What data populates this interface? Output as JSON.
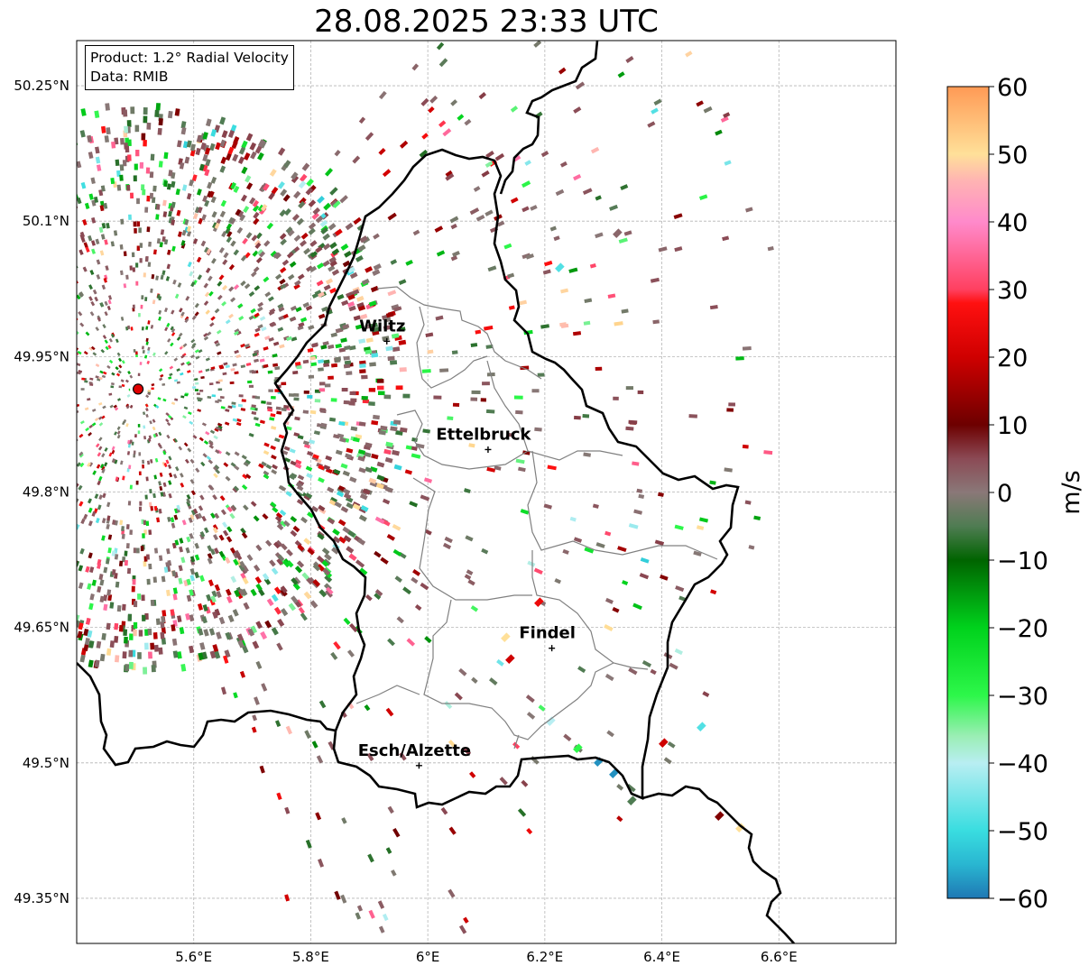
{
  "title": "28.08.2025 23:33 UTC",
  "info": {
    "product": "Product: 1.2° Radial Velocity",
    "data": "Data: RMIB"
  },
  "map": {
    "lon_range": [
      5.4,
      6.8
    ],
    "lat_range": [
      49.3,
      50.3
    ],
    "grid": true,
    "lat_ticks": [
      {
        "value": 50.25,
        "label": "50.25°N"
      },
      {
        "value": 50.1,
        "label": "50.1°N"
      },
      {
        "value": 49.95,
        "label": "49.95°N"
      },
      {
        "value": 49.8,
        "label": "49.8°N"
      },
      {
        "value": 49.65,
        "label": "49.65°N"
      },
      {
        "value": 49.5,
        "label": "49.5°N"
      },
      {
        "value": 49.35,
        "label": "49.35°N"
      }
    ],
    "lon_ticks": [
      {
        "value": 5.6,
        "label": "5.6°E"
      },
      {
        "value": 5.8,
        "label": "5.8°E"
      },
      {
        "value": 6.0,
        "label": "6°E"
      },
      {
        "value": 6.2,
        "label": "6.2°E"
      },
      {
        "value": 6.4,
        "label": "6.4°E"
      },
      {
        "value": 6.6,
        "label": "6.6°E"
      }
    ],
    "radar_site": {
      "lon": 5.505,
      "lat": 49.914
    },
    "cities": [
      {
        "name": "Wiltz",
        "lon": 5.93,
        "lat": 49.967
      },
      {
        "name": "Ettelbruck",
        "lon": 6.103,
        "lat": 49.847
      },
      {
        "name": "Findel",
        "lon": 6.212,
        "lat": 49.627
      },
      {
        "name": "Esch/Alzette",
        "lon": 5.985,
        "lat": 49.497
      }
    ]
  },
  "colorbar": {
    "label": "m/s",
    "range": [
      -60,
      60
    ],
    "ticks": [
      {
        "value": 60,
        "label": "60"
      },
      {
        "value": 50,
        "label": "50"
      },
      {
        "value": 40,
        "label": "40"
      },
      {
        "value": 30,
        "label": "30"
      },
      {
        "value": 20,
        "label": "20"
      },
      {
        "value": 10,
        "label": "10"
      },
      {
        "value": 0,
        "label": "0"
      },
      {
        "value": -10,
        "label": "−10"
      },
      {
        "value": -20,
        "label": "−20"
      },
      {
        "value": -30,
        "label": "−30"
      },
      {
        "value": -40,
        "label": "−40"
      },
      {
        "value": -50,
        "label": "−50"
      },
      {
        "value": -60,
        "label": "−60"
      }
    ],
    "stops": [
      {
        "value": -60,
        "color": "#1f78b4"
      },
      {
        "value": -55,
        "color": "#29b6d1"
      },
      {
        "value": -50,
        "color": "#39dde0"
      },
      {
        "value": -40,
        "color": "#b8eef2"
      },
      {
        "value": -36,
        "color": "#9aeeb4"
      },
      {
        "value": -30,
        "color": "#2df74a"
      },
      {
        "value": -20,
        "color": "#00d21c"
      },
      {
        "value": -10,
        "color": "#006400"
      },
      {
        "value": -5,
        "color": "#4f7c52"
      },
      {
        "value": 0,
        "color": "#8a7878"
      },
      {
        "value": 5,
        "color": "#8b4a55"
      },
      {
        "value": 10,
        "color": "#6d0000"
      },
      {
        "value": 20,
        "color": "#cf0000"
      },
      {
        "value": 28,
        "color": "#ff1010"
      },
      {
        "value": 30,
        "color": "#ff4060"
      },
      {
        "value": 40,
        "color": "#ff8acb"
      },
      {
        "value": 46,
        "color": "#ffb3b3"
      },
      {
        "value": 50,
        "color": "#ffe099"
      },
      {
        "value": 60,
        "color": "#ff9a55"
      }
    ]
  }
}
